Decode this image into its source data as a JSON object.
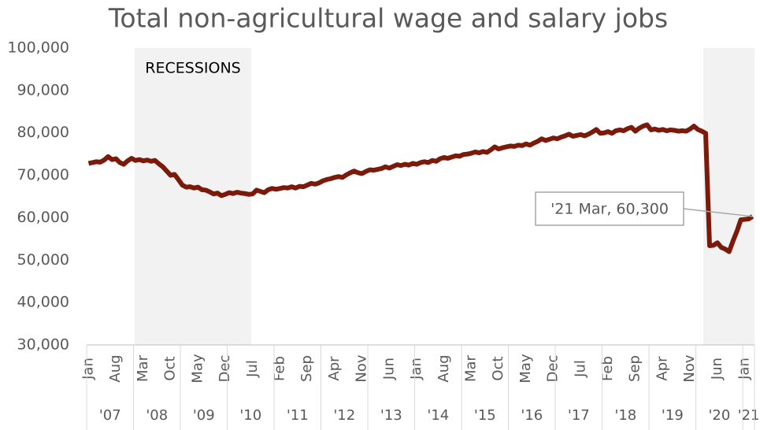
{
  "chart_data": {
    "type": "line",
    "title": "Total non-agricultural wage and salary jobs",
    "annotation": "'21 Mar, 60,300",
    "shaded_label": "RECESSIONS",
    "categories": [
      "Jan",
      null,
      null,
      null,
      null,
      null,
      null,
      "Aug",
      null,
      null,
      null,
      null,
      null,
      null,
      "Mar",
      null,
      null,
      null,
      null,
      null,
      null,
      "Oct",
      null,
      null,
      null,
      null,
      null,
      null,
      "May",
      null,
      null,
      null,
      null,
      null,
      null,
      "Dec",
      null,
      null,
      null,
      null,
      null,
      null,
      "Jul",
      null,
      null,
      null,
      null,
      null,
      null,
      "Feb",
      null,
      null,
      null,
      null,
      null,
      null,
      "Sep",
      null,
      null,
      null,
      null,
      null,
      null,
      "Apr",
      null,
      null,
      null,
      null,
      null,
      null,
      "Nov",
      null,
      null,
      null,
      null,
      null,
      null,
      "Jun",
      null,
      null,
      null,
      null,
      null,
      null,
      "Jan",
      null,
      null,
      null,
      null,
      null,
      null,
      "Aug",
      null,
      null,
      null,
      null,
      null,
      null,
      "Mar",
      null,
      null,
      null,
      null,
      null,
      null,
      "Oct",
      null,
      null,
      null,
      null,
      null,
      null,
      "May",
      null,
      null,
      null,
      null,
      null,
      null,
      "Dec",
      null,
      null,
      null,
      null,
      null,
      null,
      "Jul",
      null,
      null,
      null,
      null,
      null,
      null,
      "Feb",
      null,
      null,
      null,
      null,
      null,
      null,
      "Sep",
      null,
      null,
      null,
      null,
      null,
      null,
      "Apr",
      null,
      null,
      null,
      null,
      null,
      null,
      "Nov",
      null,
      null,
      null,
      null,
      null,
      null,
      "Jun",
      null,
      null,
      null,
      null,
      null,
      null,
      "Jan",
      null,
      null
    ],
    "year_labels": [
      "'07",
      "'08",
      "'09",
      "'10",
      "'11",
      "'12",
      "'13",
      "'14",
      "'15",
      "'16",
      "'17",
      "'18",
      "'19",
      "'20",
      "'21"
    ],
    "series": [
      {
        "name": "Jobs",
        "color": "#7b1a0a",
        "values": [
          72800,
          73000,
          73200,
          73100,
          73600,
          74400,
          73700,
          73900,
          73000,
          72600,
          73400,
          74000,
          73500,
          73700,
          73400,
          73600,
          73300,
          73500,
          72700,
          72000,
          71000,
          70000,
          70200,
          69000,
          67700,
          67200,
          67300,
          67000,
          67200,
          66600,
          66500,
          66100,
          65600,
          65800,
          65200,
          65500,
          65900,
          65700,
          66000,
          65800,
          65700,
          65500,
          65600,
          66500,
          66200,
          65900,
          66600,
          66900,
          66700,
          66900,
          67100,
          67000,
          67300,
          67000,
          67400,
          67300,
          67700,
          68100,
          67900,
          68200,
          68700,
          69000,
          69200,
          69500,
          69700,
          69500,
          70100,
          70600,
          71000,
          70600,
          70400,
          70900,
          71300,
          71200,
          71400,
          71600,
          72000,
          71700,
          72100,
          72500,
          72300,
          72600,
          72400,
          72800,
          72600,
          73000,
          73200,
          73000,
          73500,
          73300,
          73900,
          74200,
          74000,
          74300,
          74600,
          74500,
          74900,
          75000,
          75200,
          75500,
          75300,
          75600,
          75400,
          76000,
          76700,
          76200,
          76500,
          76700,
          76900,
          76800,
          77100,
          77000,
          77400,
          77100,
          77600,
          78000,
          78600,
          78200,
          78500,
          78800,
          78600,
          79000,
          79300,
          79700,
          79200,
          79400,
          79600,
          79300,
          79700,
          80200,
          80800,
          79900,
          80000,
          80300,
          79900,
          80500,
          80700,
          80500,
          81000,
          81300,
          80400,
          81100,
          81600,
          81900,
          80700,
          80900,
          80600,
          80800,
          80500,
          80700,
          80600,
          80400,
          80500,
          80400,
          80900,
          81600,
          80800,
          80400,
          79900,
          53400,
          53500,
          54100,
          53000,
          52600,
          52000,
          54500,
          56800,
          59500,
          59600,
          59700,
          60300
        ]
      }
    ],
    "ylim": [
      30000,
      100000
    ],
    "yticks": [
      {
        "value": 30000,
        "label": "30,000"
      },
      {
        "value": 40000,
        "label": "40,000"
      },
      {
        "value": 50000,
        "label": "50,000"
      },
      {
        "value": 60000,
        "label": "60,000"
      },
      {
        "value": 70000,
        "label": "70,000"
      },
      {
        "value": 80000,
        "label": "80,000"
      },
      {
        "value": 90000,
        "label": "90,000"
      },
      {
        "value": 100000,
        "label": "100,000"
      }
    ],
    "grid": false
  }
}
